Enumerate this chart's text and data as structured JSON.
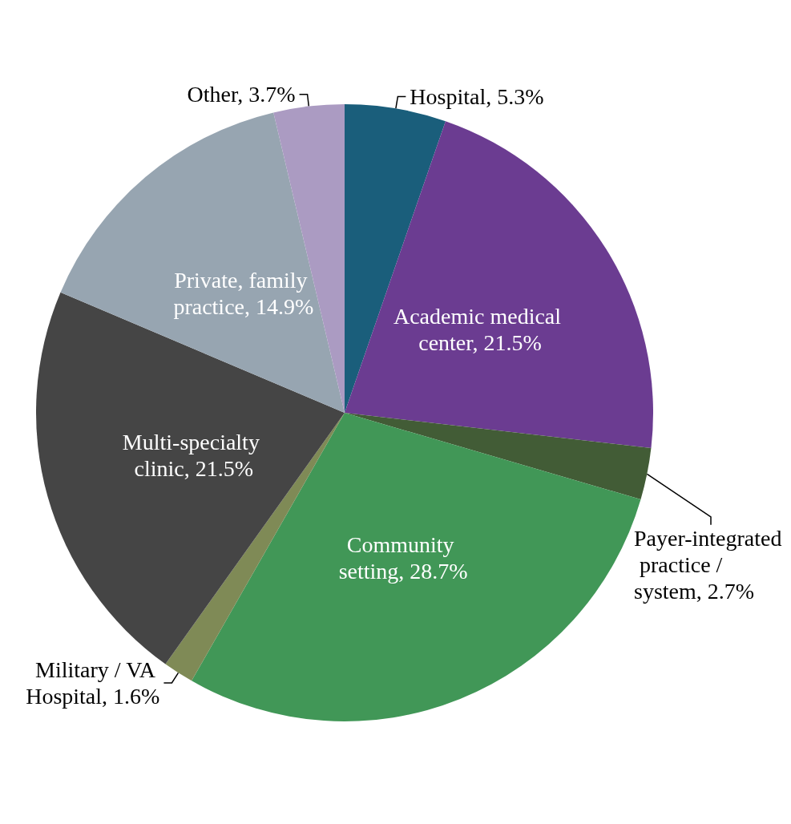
{
  "chart_data": {
    "type": "pie",
    "categories": [
      "Hospital",
      "Academic medical center",
      "Payer-integrated practice / system",
      "Community setting",
      "Military / VA Hospital",
      "Multi-specialty clinic",
      "Private, family practice",
      "Other"
    ],
    "values": [
      5.3,
      21.5,
      2.7,
      28.7,
      1.6,
      21.5,
      14.9,
      3.7
    ],
    "value_labels": [
      "5.3%",
      "21.5%",
      "2.7%",
      "28.7%",
      "1.6%",
      "21.5%",
      "14.9%",
      "3.7%"
    ],
    "colors": [
      "#1a5e7b",
      "#6b3c91",
      "#425c36",
      "#419757",
      "#7f8a56",
      "#454545",
      "#97a5b1",
      "#ab9bc2"
    ],
    "legend": false
  }
}
